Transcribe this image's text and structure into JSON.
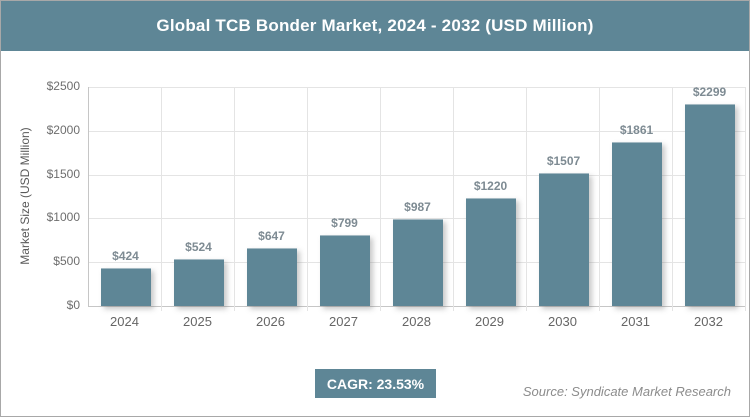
{
  "header": {
    "title": "Global TCB Bonder Market, 2024 - 2032 (USD Million)"
  },
  "footer": {
    "cagr_label": "CAGR: 23.53%",
    "source": "Source: Syndicate Market Research"
  },
  "colors": {
    "accent": "#5e8696",
    "bar": "#5e8696",
    "grid": "#e4e4e4",
    "axis": "#c6c6c6",
    "tick_text": "#6e6e6e",
    "data_label_text": "#7e8b93",
    "source_text": "#8c8c8c",
    "title_text": "#ffffff"
  },
  "chart_data": {
    "type": "bar",
    "title": "Global TCB Bonder Market, 2024 - 2032 (USD Million)",
    "categories": [
      "2024",
      "2025",
      "2026",
      "2027",
      "2028",
      "2029",
      "2030",
      "2031",
      "2032"
    ],
    "values": [
      424,
      524,
      647,
      799,
      987,
      1220,
      1507,
      1861,
      2299
    ],
    "data_labels": [
      "$424",
      "$524",
      "$647",
      "$799",
      "$987",
      "$1220",
      "$1507",
      "$1861",
      "$2299"
    ],
    "xlabel": "",
    "ylabel": "Market Size (USD Million)",
    "ylim": [
      0,
      2500
    ],
    "y_ticks": [
      0,
      500,
      1000,
      1500,
      2000,
      2500
    ],
    "y_tick_labels": [
      "$0",
      "$500",
      "$1000",
      "$1500",
      "$2000",
      "$2500"
    ],
    "grid": true,
    "legend": false,
    "cagr": "23.53%"
  }
}
